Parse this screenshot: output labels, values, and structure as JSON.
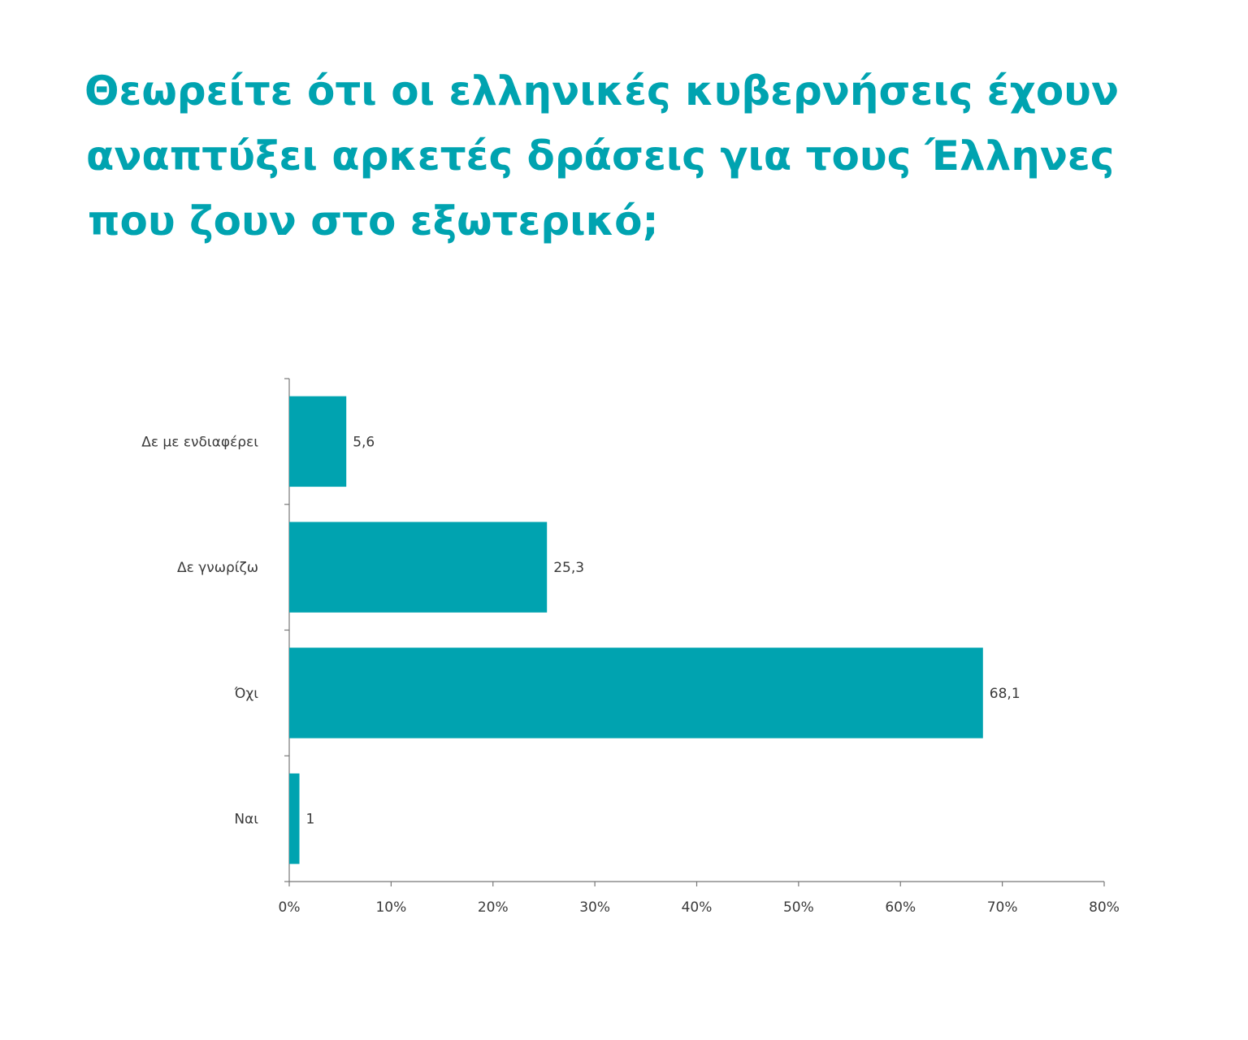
{
  "chart_data": {
    "type": "bar",
    "orientation": "horizontal",
    "title_lines": [
      "Θεωρείτε ότι οι ελληνικές κυβερνήσεις έχουν",
      "αναπτύξει αρκετές δράσεις για τους Έλληνες",
      "που ζουν στο εξωτερικό;"
    ],
    "categories": [
      "Δε με ενδιαφέρει",
      "Δε γνωρίζω",
      "Όχι",
      "Ναι"
    ],
    "values": [
      5.6,
      25.3,
      68.1,
      1
    ],
    "value_labels": [
      "5,6",
      "25,3",
      "68,1",
      "1"
    ],
    "xlim": [
      0,
      80
    ],
    "xticks": [
      0,
      10,
      20,
      30,
      40,
      50,
      60,
      70,
      80
    ],
    "xtick_labels": [
      "0%",
      "10%",
      "20%",
      "30%",
      "40%",
      "50%",
      "60%",
      "70%",
      "80%"
    ],
    "grid": false,
    "legend": "none",
    "bar_color": "#00a3b0",
    "title_color": "#00a3b0",
    "axis_color": "#777777"
  }
}
